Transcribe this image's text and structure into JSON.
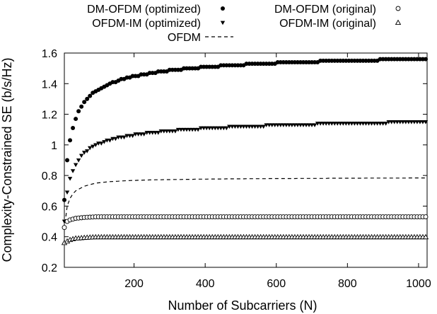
{
  "chart_data": {
    "type": "scatter",
    "xlabel": "Number of Subcarriers (N)",
    "ylabel": "Complexity-Constrained SE (b/s/Hz)",
    "xlim": [
      4,
      1024
    ],
    "ylim": [
      0.2,
      1.6
    ],
    "xticks": [
      200,
      400,
      600,
      800,
      1000
    ],
    "yticks": [
      0.2,
      0.4,
      0.6,
      0.8,
      1,
      1.2,
      1.4,
      1.6
    ],
    "grid": false,
    "legend_position": "top, outside plot, two columns",
    "n_values": [
      4,
      12,
      20,
      28,
      36,
      44,
      52,
      60,
      68,
      76,
      84,
      92,
      100,
      108,
      116,
      124,
      132,
      140,
      148,
      156,
      164,
      172,
      180,
      188,
      196,
      204,
      212,
      220,
      228,
      236,
      244,
      252,
      260,
      268,
      276,
      284,
      292,
      300,
      308,
      316,
      324,
      332,
      340,
      348,
      356,
      364,
      372,
      380,
      388,
      396,
      404,
      412,
      420,
      428,
      436,
      444,
      452,
      460,
      468,
      476,
      484,
      492,
      500,
      508,
      516,
      524,
      532,
      540,
      548,
      556,
      564,
      572,
      580,
      588,
      596,
      604,
      612,
      620,
      628,
      636,
      644,
      652,
      660,
      668,
      676,
      684,
      692,
      700,
      708,
      716,
      724,
      732,
      740,
      748,
      756,
      764,
      772,
      780,
      788,
      796,
      804,
      812,
      820,
      828,
      836,
      844,
      852,
      860,
      868,
      876,
      884,
      892,
      900,
      908,
      916,
      924,
      932,
      940,
      948,
      956,
      964,
      972,
      980,
      988,
      996,
      1004,
      1012,
      1020
    ],
    "series": [
      {
        "name": "DM-OFDM (optimized)",
        "marker": "filled-circle",
        "values": [
          0.64,
          0.9,
          1.03,
          1.11,
          1.17,
          1.22,
          1.25,
          1.28,
          1.3,
          1.32,
          1.34,
          1.35,
          1.36,
          1.37,
          1.38,
          1.39,
          1.4,
          1.41,
          1.41,
          1.42,
          1.43,
          1.43,
          1.44,
          1.44,
          1.45,
          1.45,
          1.45,
          1.46,
          1.46,
          1.46,
          1.47,
          1.47,
          1.47,
          1.48,
          1.48,
          1.48,
          1.48,
          1.49,
          1.49,
          1.49,
          1.49,
          1.49,
          1.5,
          1.5,
          1.5,
          1.5,
          1.5,
          1.5,
          1.51,
          1.51,
          1.51,
          1.51,
          1.51,
          1.51,
          1.51,
          1.52,
          1.52,
          1.52,
          1.52,
          1.52,
          1.52,
          1.52,
          1.52,
          1.52,
          1.53,
          1.53,
          1.53,
          1.53,
          1.53,
          1.53,
          1.53,
          1.53,
          1.53,
          1.53,
          1.53,
          1.54,
          1.54,
          1.54,
          1.54,
          1.54,
          1.54,
          1.54,
          1.54,
          1.54,
          1.54,
          1.54,
          1.54,
          1.54,
          1.54,
          1.54,
          1.55,
          1.55,
          1.55,
          1.55,
          1.55,
          1.55,
          1.55,
          1.55,
          1.55,
          1.55,
          1.55,
          1.55,
          1.55,
          1.55,
          1.55,
          1.55,
          1.55,
          1.55,
          1.55,
          1.55,
          1.55,
          1.56,
          1.56,
          1.56,
          1.56,
          1.56,
          1.56,
          1.56,
          1.56,
          1.56,
          1.56,
          1.56,
          1.56,
          1.56,
          1.56,
          1.56,
          1.56,
          1.56
        ]
      },
      {
        "name": "OFDM-IM (optimized)",
        "marker": "filled-triangle-down",
        "values": [
          0.5,
          0.69,
          0.78,
          0.83,
          0.87,
          0.9,
          0.93,
          0.95,
          0.96,
          0.98,
          0.99,
          1.0,
          1.01,
          1.01,
          1.02,
          1.03,
          1.03,
          1.04,
          1.04,
          1.05,
          1.05,
          1.05,
          1.06,
          1.06,
          1.06,
          1.07,
          1.07,
          1.07,
          1.07,
          1.08,
          1.08,
          1.08,
          1.08,
          1.08,
          1.09,
          1.09,
          1.09,
          1.09,
          1.09,
          1.09,
          1.1,
          1.1,
          1.1,
          1.1,
          1.1,
          1.1,
          1.1,
          1.1,
          1.11,
          1.11,
          1.11,
          1.11,
          1.11,
          1.11,
          1.11,
          1.11,
          1.11,
          1.11,
          1.12,
          1.12,
          1.12,
          1.12,
          1.12,
          1.12,
          1.12,
          1.12,
          1.12,
          1.12,
          1.12,
          1.12,
          1.12,
          1.13,
          1.13,
          1.13,
          1.13,
          1.13,
          1.13,
          1.13,
          1.13,
          1.13,
          1.13,
          1.13,
          1.13,
          1.13,
          1.13,
          1.13,
          1.13,
          1.13,
          1.13,
          1.14,
          1.14,
          1.14,
          1.14,
          1.14,
          1.14,
          1.14,
          1.14,
          1.14,
          1.14,
          1.14,
          1.14,
          1.14,
          1.14,
          1.14,
          1.14,
          1.14,
          1.14,
          1.14,
          1.14,
          1.14,
          1.14,
          1.14,
          1.14,
          1.14,
          1.15,
          1.15,
          1.15,
          1.15,
          1.15,
          1.15,
          1.15,
          1.15,
          1.15,
          1.15,
          1.15,
          1.15,
          1.15,
          1.15
        ]
      },
      {
        "name": "OFDM",
        "marker": "dashed-line",
        "values": [
          0.45,
          0.6,
          0.65,
          0.68,
          0.7,
          0.71,
          0.72,
          0.73,
          0.735,
          0.74,
          0.745,
          0.75,
          0.752,
          0.754,
          0.756,
          0.758,
          0.76,
          0.761,
          0.762,
          0.763,
          0.764,
          0.765,
          0.766,
          0.767,
          0.768,
          0.768,
          0.769,
          0.769,
          0.77,
          0.77,
          0.771,
          0.771,
          0.772,
          0.772,
          0.772,
          0.773,
          0.773,
          0.773,
          0.774,
          0.774,
          0.774,
          0.774,
          0.775,
          0.775,
          0.775,
          0.775,
          0.776,
          0.776,
          0.776,
          0.776,
          0.776,
          0.777,
          0.777,
          0.777,
          0.777,
          0.777,
          0.777,
          0.778,
          0.778,
          0.778,
          0.778,
          0.778,
          0.778,
          0.778,
          0.779,
          0.779,
          0.779,
          0.779,
          0.779,
          0.779,
          0.779,
          0.779,
          0.78,
          0.78,
          0.78,
          0.78,
          0.78,
          0.78,
          0.78,
          0.78,
          0.78,
          0.78,
          0.781,
          0.781,
          0.781,
          0.781,
          0.781,
          0.781,
          0.781,
          0.781,
          0.781,
          0.781,
          0.781,
          0.782,
          0.782,
          0.782,
          0.782,
          0.782,
          0.782,
          0.782,
          0.782,
          0.782,
          0.782,
          0.782,
          0.782,
          0.782,
          0.783,
          0.783,
          0.783,
          0.783,
          0.783,
          0.783,
          0.783,
          0.783,
          0.783,
          0.783,
          0.783,
          0.783,
          0.783,
          0.783,
          0.783,
          0.784,
          0.784,
          0.784,
          0.784,
          0.784,
          0.784,
          0.784
        ]
      },
      {
        "name": "DM-OFDM (original)",
        "marker": "hollow-circle",
        "values": [
          0.46,
          0.5,
          0.51,
          0.515,
          0.52,
          0.522,
          0.524,
          0.526,
          0.527,
          0.528,
          0.529,
          0.53,
          0.53,
          0.53,
          0.53,
          0.53,
          0.53,
          0.53,
          0.53,
          0.53,
          0.53,
          0.53,
          0.53,
          0.53,
          0.53,
          0.53,
          0.53,
          0.53,
          0.53,
          0.53,
          0.53,
          0.53,
          0.53,
          0.53,
          0.53,
          0.53,
          0.53,
          0.53,
          0.53,
          0.53,
          0.53,
          0.53,
          0.53,
          0.53,
          0.53,
          0.53,
          0.53,
          0.53,
          0.53,
          0.53,
          0.53,
          0.53,
          0.53,
          0.53,
          0.53,
          0.53,
          0.53,
          0.53,
          0.53,
          0.53,
          0.53,
          0.53,
          0.53,
          0.53,
          0.53,
          0.53,
          0.53,
          0.53,
          0.53,
          0.53,
          0.53,
          0.53,
          0.53,
          0.53,
          0.53,
          0.53,
          0.53,
          0.53,
          0.53,
          0.53,
          0.53,
          0.53,
          0.53,
          0.53,
          0.53,
          0.53,
          0.53,
          0.53,
          0.53,
          0.53,
          0.53,
          0.53,
          0.53,
          0.53,
          0.53,
          0.53,
          0.53,
          0.53,
          0.53,
          0.53,
          0.53,
          0.53,
          0.53,
          0.53,
          0.53,
          0.53,
          0.53,
          0.53,
          0.53,
          0.53,
          0.53,
          0.53,
          0.53,
          0.53,
          0.53,
          0.53,
          0.53,
          0.53,
          0.53,
          0.53,
          0.53,
          0.53,
          0.53,
          0.53,
          0.53,
          0.53,
          0.53,
          0.53
        ]
      },
      {
        "name": "OFDM-IM (original)",
        "marker": "hollow-triangle-up",
        "values": [
          0.36,
          0.37,
          0.38,
          0.385,
          0.39,
          0.39,
          0.392,
          0.394,
          0.395,
          0.396,
          0.397,
          0.398,
          0.398,
          0.398,
          0.398,
          0.398,
          0.398,
          0.398,
          0.398,
          0.398,
          0.398,
          0.398,
          0.398,
          0.398,
          0.398,
          0.398,
          0.398,
          0.398,
          0.398,
          0.398,
          0.398,
          0.398,
          0.398,
          0.398,
          0.398,
          0.398,
          0.398,
          0.398,
          0.398,
          0.398,
          0.398,
          0.398,
          0.398,
          0.398,
          0.398,
          0.398,
          0.398,
          0.398,
          0.398,
          0.398,
          0.398,
          0.398,
          0.398,
          0.398,
          0.398,
          0.398,
          0.398,
          0.398,
          0.398,
          0.398,
          0.398,
          0.398,
          0.398,
          0.398,
          0.398,
          0.398,
          0.398,
          0.398,
          0.398,
          0.398,
          0.398,
          0.398,
          0.398,
          0.398,
          0.398,
          0.398,
          0.398,
          0.398,
          0.398,
          0.398,
          0.398,
          0.398,
          0.398,
          0.398,
          0.398,
          0.398,
          0.398,
          0.398,
          0.398,
          0.398,
          0.398,
          0.398,
          0.398,
          0.398,
          0.398,
          0.398,
          0.398,
          0.398,
          0.398,
          0.398,
          0.398,
          0.398,
          0.398,
          0.398,
          0.398,
          0.398,
          0.398,
          0.398,
          0.398,
          0.398,
          0.398,
          0.398,
          0.398,
          0.398,
          0.398,
          0.398,
          0.398,
          0.398,
          0.398,
          0.398,
          0.398,
          0.398,
          0.398,
          0.398,
          0.398,
          0.398,
          0.398,
          0.398
        ]
      }
    ]
  }
}
